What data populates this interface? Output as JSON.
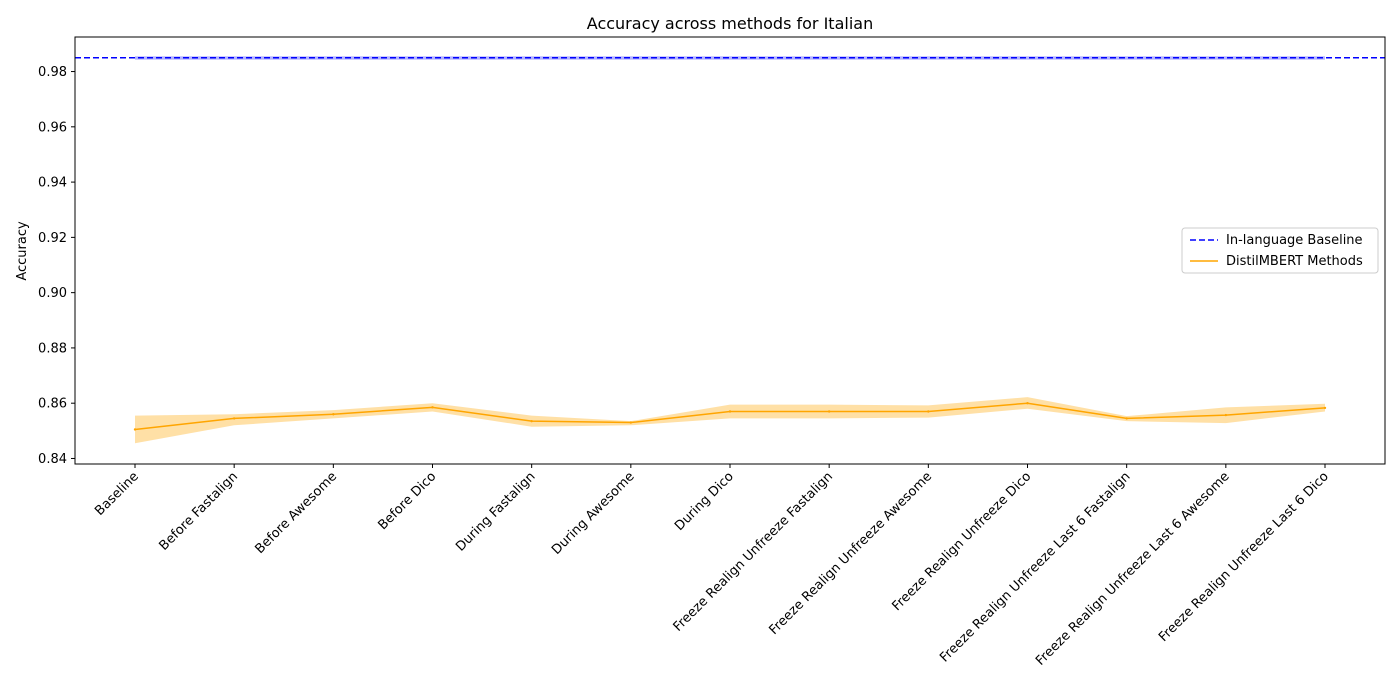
{
  "chart_data": {
    "type": "line",
    "title": "Accuracy across methods for Italian",
    "xlabel": "",
    "ylabel": "Accuracy",
    "ylim": [
      0.838,
      0.9925
    ],
    "yticks": [
      "0.84",
      "0.86",
      "0.88",
      "0.90",
      "0.92",
      "0.94",
      "0.96",
      "0.98"
    ],
    "categories": [
      "Baseline",
      "Before Fastalign",
      "Before Awesome",
      "Before Dico",
      "During Fastalign",
      "During Awesome",
      "During Dico",
      "Freeze Realign Unfreeze Fastalign",
      "Freeze Realign Unfreeze Awesome",
      "Freeze Realign Unfreeze Dico",
      "Freeze Realign Unfreeze Last 6 Fastalign",
      "Freeze Realign Unfreeze Last 6 Awesome",
      "Freeze Realign Unfreeze Last 6 Dico"
    ],
    "baseline": {
      "name": "In-language Baseline",
      "value": 0.985,
      "band": [
        0.9843,
        0.9855
      ],
      "color": "#0000ff"
    },
    "series": [
      {
        "name": "DistilMBERT Methods",
        "color": "#ffa500",
        "values": [
          0.8505,
          0.8545,
          0.856,
          0.8585,
          0.8535,
          0.853,
          0.857,
          0.857,
          0.857,
          0.86,
          0.8545,
          0.8557,
          0.8583
        ],
        "lower": [
          0.8455,
          0.852,
          0.8545,
          0.857,
          0.8515,
          0.852,
          0.8545,
          0.8545,
          0.8548,
          0.858,
          0.8535,
          0.8528,
          0.857
        ],
        "upper": [
          0.8555,
          0.856,
          0.8575,
          0.86,
          0.8555,
          0.8535,
          0.8595,
          0.8595,
          0.8592,
          0.8622,
          0.8553,
          0.8585,
          0.8598
        ]
      }
    ],
    "legend": {
      "location": "center-right"
    },
    "grid": false
  }
}
